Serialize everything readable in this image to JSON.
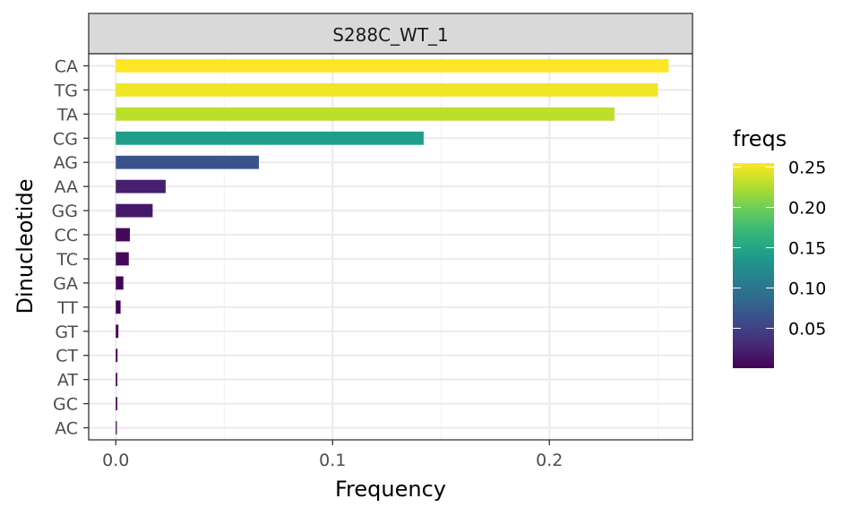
{
  "chart_data": {
    "type": "bar",
    "orientation": "horizontal",
    "facet_label": "S288C_WT_1",
    "xlabel": "Frequency",
    "ylabel": "Dinucleotide",
    "categories": [
      "CA",
      "TG",
      "TA",
      "CG",
      "AG",
      "AA",
      "GG",
      "CC",
      "TC",
      "GA",
      "TT",
      "GT",
      "CT",
      "AT",
      "GC",
      "AC"
    ],
    "values": [
      0.255,
      0.25,
      0.23,
      0.142,
      0.066,
      0.023,
      0.017,
      0.0065,
      0.006,
      0.0035,
      0.0022,
      0.0012,
      0.0008,
      0.0007,
      0.0007,
      0.0005
    ],
    "xlim": [
      -0.0125,
      0.266
    ],
    "xticks": [
      0.0,
      0.1,
      0.2
    ],
    "xtick_labels": [
      "0.0",
      "0.1",
      "0.2"
    ],
    "grid": true,
    "colorbar": {
      "title": "freqs",
      "min": 0.0005,
      "max": 0.255,
      "ticks": [
        0.05,
        0.1,
        0.15,
        0.2,
        0.25
      ],
      "tick_labels": [
        "0.05",
        "0.10",
        "0.15",
        "0.20",
        "0.25"
      ],
      "palette": [
        "#440154",
        "#482878",
        "#3E4A89",
        "#31688E",
        "#26828E",
        "#1F9E89",
        "#35B779",
        "#6DCD59",
        "#B4DE2C",
        "#FDE725"
      ]
    },
    "legend_position": "right"
  }
}
